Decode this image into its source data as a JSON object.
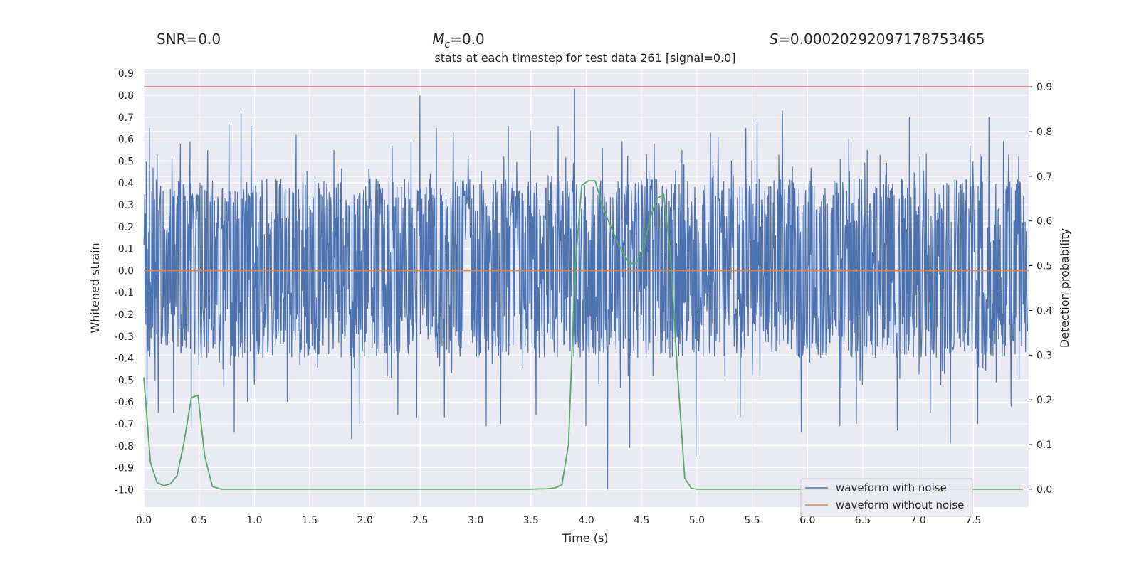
{
  "header": {
    "snr_label": "SNR=0.0",
    "mc_symbol": "M",
    "mc_subscript": "c",
    "mc_value": "=0.0",
    "s_symbol": "S",
    "s_value": "=0.00020292097178753465"
  },
  "chart_data": {
    "type": "line",
    "title": "stats at each timestep for test data 261 [signal=0.0]",
    "xlabel": "Time (s)",
    "ylabel_left": "Whitened strain",
    "ylabel_right": "Detection probability",
    "xlim": [
      0.0,
      8.0
    ],
    "ylim_left": [
      -1.08,
      0.92
    ],
    "ylim_right": [
      -0.04,
      0.94
    ],
    "x_ticks": [
      "0.0",
      "0.5",
      "1.0",
      "1.5",
      "2.0",
      "2.5",
      "3.0",
      "3.5",
      "4.0",
      "4.5",
      "5.0",
      "5.5",
      "6.0",
      "6.5",
      "7.0",
      "7.5"
    ],
    "y_ticks_left": [
      "0.9",
      "0.8",
      "0.7",
      "0.6",
      "0.5",
      "0.4",
      "0.3",
      "0.2",
      "0.1",
      "0.0",
      "-0.1",
      "-0.2",
      "-0.3",
      "-0.4",
      "-0.5",
      "-0.6",
      "-0.7",
      "-0.8",
      "-0.9",
      "-1.0"
    ],
    "y_ticks_right": [
      "0.9",
      "0.8",
      "0.7",
      "0.6",
      "0.5",
      "0.4",
      "0.3",
      "0.2",
      "0.1",
      "0.0"
    ],
    "grid": true,
    "legend_position": "lower-right",
    "threshold": {
      "axis": "right",
      "value": 0.9,
      "color": "#c44e52"
    },
    "series": [
      {
        "name": "waveform with noise",
        "axis": "left",
        "color": "#4c72b0",
        "render": "dense-noise",
        "envelope": {
          "typical_max": 0.42,
          "typical_min": -0.4,
          "max": 0.83,
          "min": -1.0
        },
        "peaks": [
          {
            "x": 0.05,
            "y": 0.65
          },
          {
            "x": 0.12,
            "y": 0.53
          },
          {
            "x": 0.33,
            "y": 0.58
          },
          {
            "x": 0.42,
            "y": 0.59
          },
          {
            "x": 0.58,
            "y": 0.55
          },
          {
            "x": 0.77,
            "y": 0.67
          },
          {
            "x": 0.88,
            "y": 0.72
          },
          {
            "x": 0.97,
            "y": 0.66
          },
          {
            "x": 1.38,
            "y": 0.62
          },
          {
            "x": 1.72,
            "y": 0.55
          },
          {
            "x": 2.25,
            "y": 0.57
          },
          {
            "x": 2.42,
            "y": 0.59
          },
          {
            "x": 2.5,
            "y": 0.8
          },
          {
            "x": 2.65,
            "y": 0.65
          },
          {
            "x": 2.8,
            "y": 0.63
          },
          {
            "x": 3.3,
            "y": 0.66
          },
          {
            "x": 3.5,
            "y": 0.64
          },
          {
            "x": 3.75,
            "y": 0.66
          },
          {
            "x": 3.9,
            "y": 0.83
          },
          {
            "x": 4.15,
            "y": 0.56
          },
          {
            "x": 4.33,
            "y": 0.59
          },
          {
            "x": 4.55,
            "y": 0.53
          },
          {
            "x": 4.62,
            "y": 0.58
          },
          {
            "x": 4.87,
            "y": 0.55
          },
          {
            "x": 5.13,
            "y": 0.63
          },
          {
            "x": 5.2,
            "y": 0.61
          },
          {
            "x": 5.45,
            "y": 0.65
          },
          {
            "x": 5.55,
            "y": 0.68
          },
          {
            "x": 5.78,
            "y": 0.73
          },
          {
            "x": 6.38,
            "y": 0.6
          },
          {
            "x": 6.55,
            "y": 0.55
          },
          {
            "x": 6.93,
            "y": 0.7
          },
          {
            "x": 7.48,
            "y": 0.57
          },
          {
            "x": 7.65,
            "y": 0.7
          },
          {
            "x": 7.78,
            "y": 0.59
          },
          {
            "x": 7.92,
            "y": 0.52
          }
        ],
        "troughs": [
          {
            "x": 0.03,
            "y": -0.61
          },
          {
            "x": 0.13,
            "y": -0.65
          },
          {
            "x": 0.27,
            "y": -0.65
          },
          {
            "x": 0.43,
            "y": -0.72
          },
          {
            "x": 0.82,
            "y": -0.74
          },
          {
            "x": 0.94,
            "y": -0.6
          },
          {
            "x": 1.3,
            "y": -0.6
          },
          {
            "x": 1.88,
            "y": -0.77
          },
          {
            "x": 1.95,
            "y": -0.7
          },
          {
            "x": 2.3,
            "y": -0.66
          },
          {
            "x": 2.47,
            "y": -0.67
          },
          {
            "x": 2.72,
            "y": -0.67
          },
          {
            "x": 3.1,
            "y": -0.71
          },
          {
            "x": 3.23,
            "y": -0.7
          },
          {
            "x": 3.55,
            "y": -0.66
          },
          {
            "x": 4.0,
            "y": -0.71
          },
          {
            "x": 4.2,
            "y": -1.0
          },
          {
            "x": 4.4,
            "y": -0.81
          },
          {
            "x": 5.0,
            "y": -0.85
          },
          {
            "x": 5.4,
            "y": -0.67
          },
          {
            "x": 5.95,
            "y": -0.74
          },
          {
            "x": 6.3,
            "y": -0.71
          },
          {
            "x": 6.45,
            "y": -0.7
          },
          {
            "x": 6.82,
            "y": -0.73
          },
          {
            "x": 7.12,
            "y": -0.65
          },
          {
            "x": 7.3,
            "y": -0.79
          },
          {
            "x": 7.55,
            "y": -0.7
          },
          {
            "x": 7.85,
            "y": -0.62
          }
        ]
      },
      {
        "name": "waveform without noise",
        "axis": "left",
        "color": "#dd8452",
        "x": [
          0.0,
          8.0
        ],
        "y": [
          0.0,
          0.0
        ]
      },
      {
        "name": "detection probability",
        "axis": "right",
        "color": "#55a868",
        "x": [
          0.0,
          0.06,
          0.12,
          0.18,
          0.24,
          0.3,
          0.36,
          0.43,
          0.49,
          0.55,
          0.62,
          0.7,
          1.0,
          2.0,
          3.0,
          3.5,
          3.65,
          3.72,
          3.78,
          3.84,
          3.9,
          3.96,
          4.02,
          4.08,
          4.14,
          4.2,
          4.27,
          4.33,
          4.39,
          4.45,
          4.52,
          4.58,
          4.64,
          4.7,
          4.76,
          4.82,
          4.89,
          4.95,
          5.0,
          6.0,
          7.0,
          7.95
        ],
        "y": [
          0.25,
          0.06,
          0.015,
          0.008,
          0.012,
          0.03,
          0.1,
          0.205,
          0.21,
          0.075,
          0.006,
          0.0,
          0.0,
          0.0,
          0.0,
          0.0,
          0.001,
          0.003,
          0.01,
          0.1,
          0.5,
          0.68,
          0.69,
          0.69,
          0.64,
          0.6,
          0.56,
          0.53,
          0.505,
          0.505,
          0.54,
          0.61,
          0.65,
          0.66,
          0.53,
          0.28,
          0.025,
          0.002,
          0.0,
          0.0,
          0.0,
          0.0
        ]
      }
    ]
  }
}
